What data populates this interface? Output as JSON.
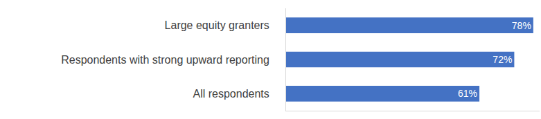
{
  "chart_data": {
    "type": "bar",
    "orientation": "horizontal",
    "categories": [
      "Large equity granters",
      "Respondents with strong upward reporting",
      "All respondents"
    ],
    "values": [
      78,
      72,
      61
    ],
    "value_labels": [
      "78%",
      "72%",
      "61%"
    ],
    "data_labels": true,
    "color": "#4472c4",
    "xlim": [
      0,
      80
    ],
    "xticks": [],
    "tick_labels": "y",
    "grid": false
  }
}
